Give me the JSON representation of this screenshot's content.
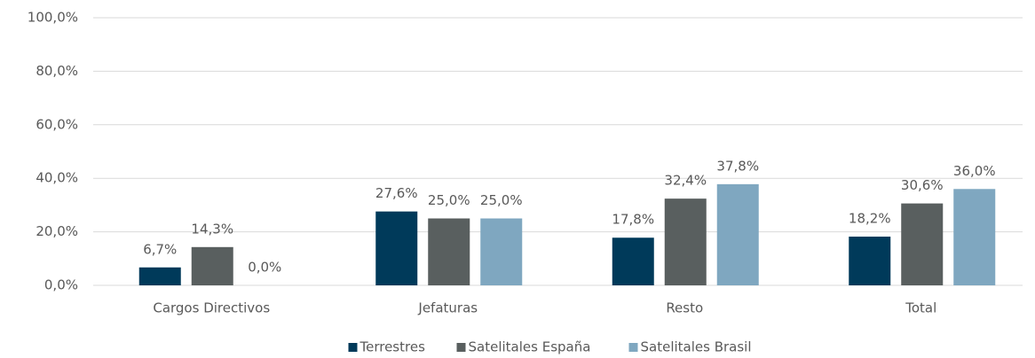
{
  "chart_data": {
    "type": "bar",
    "categories": [
      "Cargos Directivos",
      "Jefaturas",
      "Resto",
      "Total"
    ],
    "series": [
      {
        "name": "Terrestres",
        "color": "#003a5a",
        "values": [
          6.7,
          27.6,
          17.8,
          18.2
        ],
        "value_labels": [
          "6,7%",
          "27,6%",
          "17,8%",
          "18,2%"
        ]
      },
      {
        "name": "Satelitales España",
        "color": "#595f5f",
        "values": [
          14.3,
          25.0,
          32.4,
          30.6
        ],
        "value_labels": [
          "14,3%",
          "25,0%",
          "32,4%",
          "30,6%"
        ]
      },
      {
        "name": "Satelitales Brasil",
        "color": "#7fa7c0",
        "values": [
          0.0,
          25.0,
          37.8,
          36.0
        ],
        "value_labels": [
          "0,0%",
          "25,0%",
          "37,8%",
          "36,0%"
        ]
      }
    ],
    "ylim": [
      0,
      100
    ],
    "yticks": [
      {
        "value": 0,
        "label": "0,0%"
      },
      {
        "value": 20,
        "label": "20,0%"
      },
      {
        "value": 40,
        "label": "40,0%"
      },
      {
        "value": 60,
        "label": "60,0%"
      },
      {
        "value": 80,
        "label": "80,0%"
      },
      {
        "value": 100,
        "label": "100,0%"
      }
    ],
    "grid": true,
    "legend": "bottom"
  }
}
